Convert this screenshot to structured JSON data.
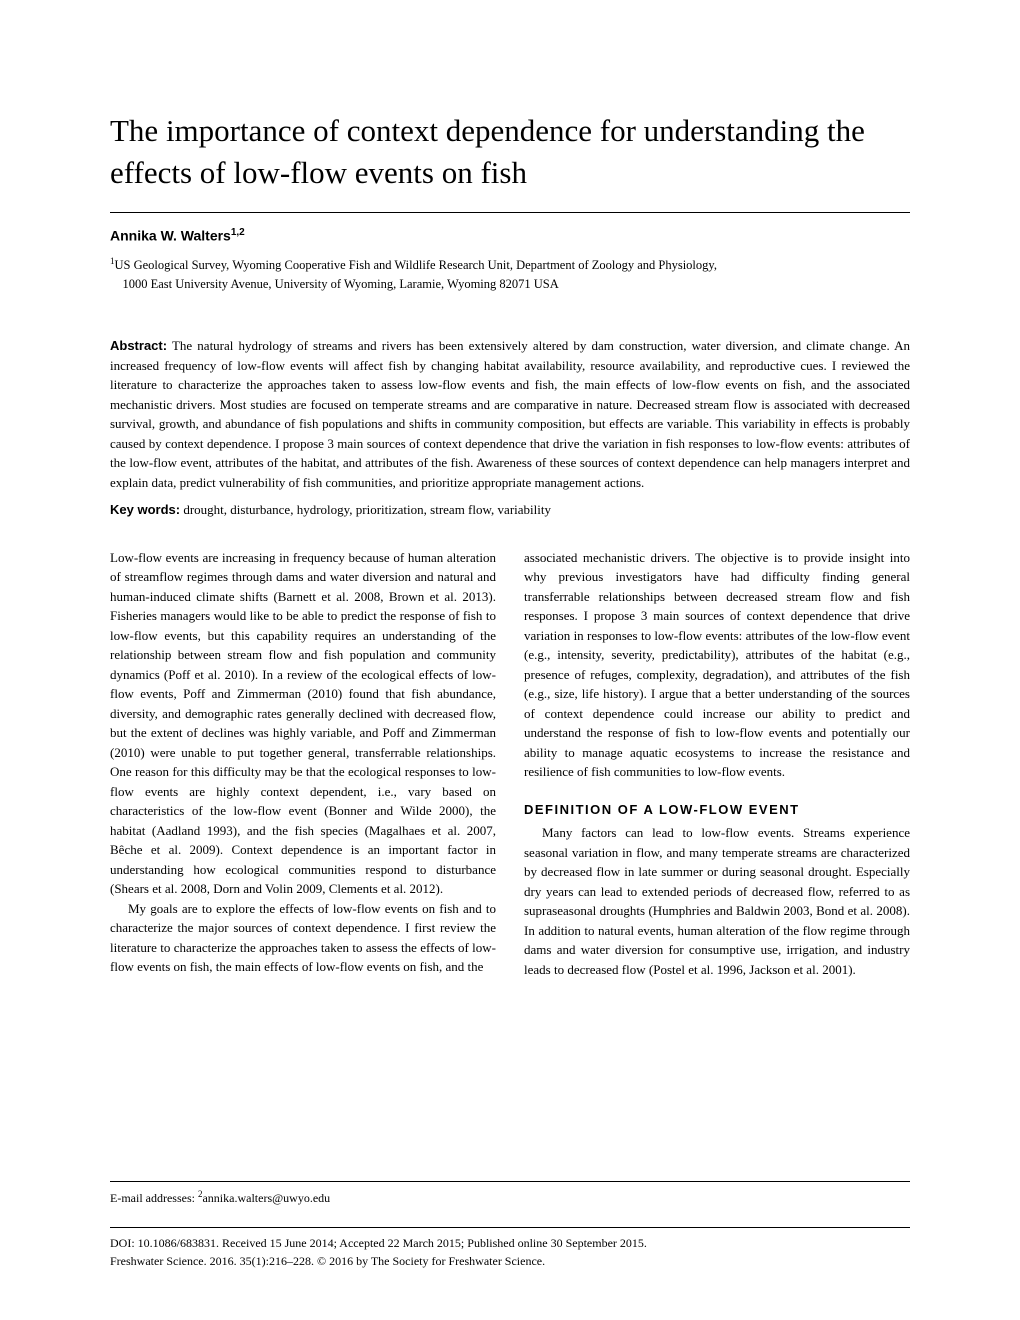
{
  "title": "The importance of context dependence for understanding the effects of low-flow events on fish",
  "author_name": "Annika W. Walters",
  "author_sup": "1,2",
  "affiliation_sup": "1",
  "affiliation_line1": "US Geological Survey, Wyoming Cooperative Fish and Wildlife Research Unit, Department of Zoology and Physiology,",
  "affiliation_line2": "1000 East University Avenue, University of Wyoming, Laramie, Wyoming 82071 USA",
  "abstract_label": "Abstract:",
  "abstract_text": " The natural hydrology of streams and rivers has been extensively altered by dam construction, water diversion, and climate change. An increased frequency of low-flow events will affect fish by changing habitat availability, resource availability, and reproductive cues. I reviewed the literature to characterize the approaches taken to assess low-flow events and fish, the main effects of low-flow events on fish, and the associated mechanistic drivers. Most studies are focused on temperate streams and are comparative in nature. Decreased stream flow is associated with decreased survival, growth, and abundance of fish populations and shifts in community composition, but effects are variable. This variability in effects is probably caused by context dependence. I propose 3 main sources of context dependence that drive the variation in fish responses to low-flow events: attributes of the low-flow event, attributes of the habitat, and attributes of the fish. Awareness of these sources of context dependence can help managers interpret and explain data, predict vulnerability of fish communities, and prioritize appropriate management actions.",
  "keywords_label": "Key words:",
  "keywords_text": " drought, disturbance, hydrology, prioritization, stream flow, variability",
  "col1_p1": "Low-flow events are increasing in frequency because of human alteration of streamflow regimes through dams and water diversion and natural and human-induced climate shifts (Barnett et al. 2008, Brown et al. 2013). Fisheries managers would like to be able to predict the response of fish to low-flow events, but this capability requires an understanding of the relationship between stream flow and fish population and community dynamics (Poff et al. 2010). In a review of the ecological effects of low-flow events, Poff and Zimmerman (2010) found that fish abundance, diversity, and demographic rates generally declined with decreased flow, but the extent of declines was highly variable, and Poff and Zimmerman (2010) were unable to put together general, transferrable relationships. One reason for this difficulty may be that the ecological responses to low-flow events are highly context dependent, i.e., vary based on characteristics of the low-flow event (Bonner and Wilde 2000), the habitat (Aadland 1993), and the fish species (Magalhaes et al. 2007, Bêche et al. 2009). Context dependence is an important factor in understanding how ecological communities respond to disturbance (Shears et al. 2008, Dorn and Volin 2009, Clements et al. 2012).",
  "col1_p2": "My goals are to explore the effects of low-flow events on fish and to characterize the major sources of context dependence. I first review the literature to characterize the approaches taken to assess the effects of low-flow events on fish, the main effects of low-flow events on fish, and the",
  "col2_p1": "associated mechanistic drivers. The objective is to provide insight into why previous investigators have had difficulty finding general transferrable relationships between decreased stream flow and fish responses. I propose 3 main sources of context dependence that drive variation in responses to low-flow events: attributes of the low-flow event (e.g., intensity, severity, predictability), attributes of the habitat (e.g., presence of refuges, complexity, degradation), and attributes of the fish (e.g., size, life history). I argue that a better understanding of the sources of context dependence could increase our ability to predict and understand the response of fish to low-flow events and potentially our ability to manage aquatic ecosystems to increase the resistance and resilience of fish communities to low-flow events.",
  "section_heading": "DEFINITION OF A LOW-FLOW EVENT",
  "col2_p2": "Many factors can lead to low-flow events. Streams experience seasonal variation in flow, and many temperate streams are characterized by decreased flow in late summer or during seasonal drought. Especially dry years can lead to extended periods of decreased flow, referred to as supraseasonal droughts (Humphries and Baldwin 2003, Bond et al. 2008). In addition to natural events, human alteration of the flow regime through dams and water diversion for consumptive use, irrigation, and industry leads to decreased flow (Postel et al. 1996, Jackson et al. 2001).",
  "footer_email_label": "E-mail addresses: ",
  "footer_email_sup": "2",
  "footer_email": "annika.walters@uwyo.edu",
  "footer_info1": "DOI: 10.1086/683831. Received 15 June 2014; Accepted 22 March 2015; Published online 30 September 2015.",
  "footer_info2": "Freshwater Science. 2016. 35(1):216–228. © 2016 by The Society for Freshwater Science."
}
